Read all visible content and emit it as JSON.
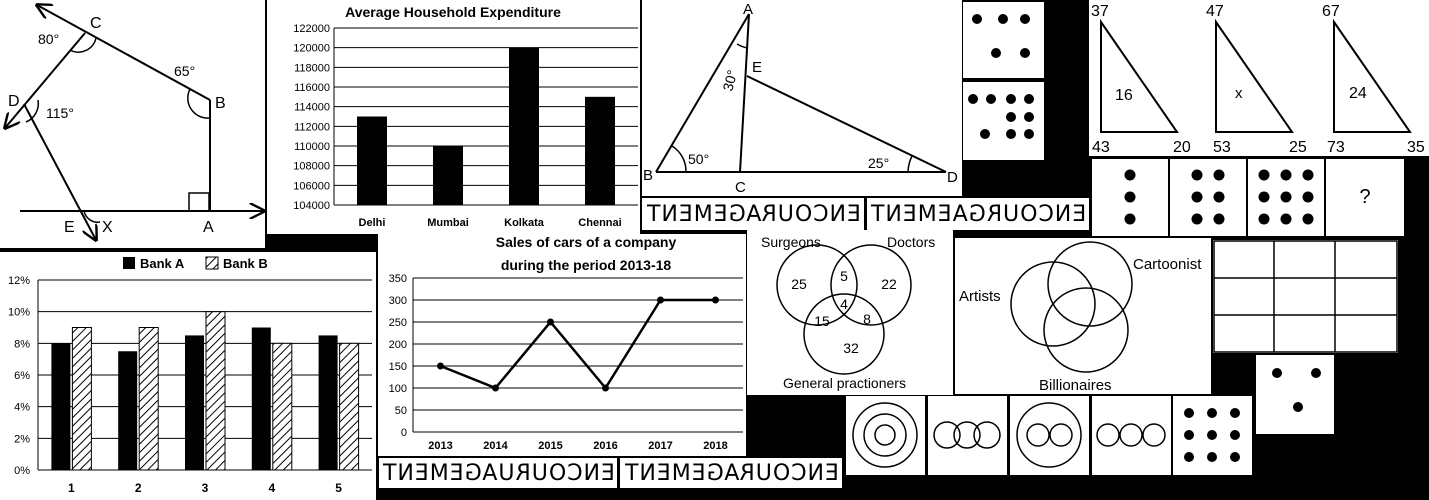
{
  "geometry_figure": {
    "points": [
      "C",
      "B",
      "D",
      "E",
      "A",
      "X"
    ],
    "angles": [
      "80°",
      "65°",
      "115°"
    ]
  },
  "expenditure_chart": {
    "title": "Average Household Expenditure",
    "ylim": [
      104000,
      122000
    ],
    "ytick_labels": [
      "122000",
      "120000",
      "118000",
      "116000",
      "114000",
      "112000",
      "110000",
      "108000",
      "106000",
      "104000"
    ],
    "categories": [
      "Delhi",
      "Mumbai",
      "Kolkata",
      "Chennai"
    ],
    "values": [
      113000,
      110000,
      120000,
      115000
    ]
  },
  "triangle_figure": {
    "points": [
      "A",
      "E",
      "B",
      "C",
      "D"
    ],
    "angles": [
      "30°",
      "50°",
      "25°"
    ]
  },
  "dice_top": {
    "counts": [
      5,
      9
    ]
  },
  "triangles_puzzle": {
    "items": [
      {
        "top": "37",
        "inner": "16",
        "bottom_left": "43",
        "bottom_right": "20"
      },
      {
        "top": "47",
        "inner": "x",
        "bottom_left": "53",
        "bottom_right": "25"
      },
      {
        "top": "67",
        "inner": "24",
        "bottom_left": "73",
        "bottom_right": "35"
      }
    ]
  },
  "dot_series": {
    "counts": [
      3,
      6,
      9
    ],
    "question": "?"
  },
  "mirror_words": {
    "word1": "ENCOURAGEMENT",
    "word2": "ENCOURGAEMENT",
    "word3": "ENCOURUAGEMENT",
    "word4": "ENCOURAGEMENT"
  },
  "bank_chart": {
    "legend": [
      "Bank A",
      "Bank B"
    ],
    "ytick_labels": [
      "12%",
      "10%",
      "8%",
      "6%",
      "4%",
      "2%",
      "0%"
    ],
    "ylim": [
      0,
      12
    ],
    "categories": [
      "1",
      "2",
      "3",
      "4",
      "5"
    ]
  },
  "cars_chart": {
    "title_line1": "Sales of cars of a company",
    "title_line2": "during the period 2013-18",
    "ytick_labels": [
      "350",
      "300",
      "250",
      "200",
      "150",
      "100",
      "50",
      "0"
    ],
    "ylim": [
      0,
      350
    ]
  },
  "venn_medical": {
    "labels": [
      "Surgeons",
      "Doctors",
      "General practioners"
    ],
    "values": [
      "25",
      "5",
      "22",
      "4",
      "15",
      "8",
      "32"
    ]
  },
  "venn_artists": {
    "labels": [
      "Cartoonist",
      "Artists",
      "Billionaires"
    ]
  },
  "dice_mid": {
    "count": 3
  },
  "dice_bottom": {
    "count": 9
  },
  "chart_data": [
    {
      "type": "bar",
      "title": "Average Household Expenditure",
      "categories": [
        "Delhi",
        "Mumbai",
        "Kolkata",
        "Chennai"
      ],
      "values": [
        113000,
        110000,
        120000,
        115000
      ],
      "ylim": [
        104000,
        122000
      ],
      "grid": true
    },
    {
      "type": "bar",
      "categories": [
        "1",
        "2",
        "3",
        "4",
        "5"
      ],
      "series": [
        {
          "name": "Bank A",
          "values": [
            8,
            7.5,
            8.5,
            9,
            8.5
          ]
        },
        {
          "name": "Bank B",
          "values": [
            9,
            9,
            10,
            8,
            8
          ]
        }
      ],
      "ylim": [
        0,
        12
      ],
      "grid": true,
      "legend": "top"
    },
    {
      "type": "line",
      "title": "Sales of cars of a company during the period 2013-18",
      "x": [
        "2013",
        "2014",
        "2015",
        "2016",
        "2017",
        "2018"
      ],
      "values": [
        150,
        100,
        250,
        100,
        300,
        300
      ],
      "ylim": [
        0,
        350
      ],
      "grid": true
    }
  ]
}
